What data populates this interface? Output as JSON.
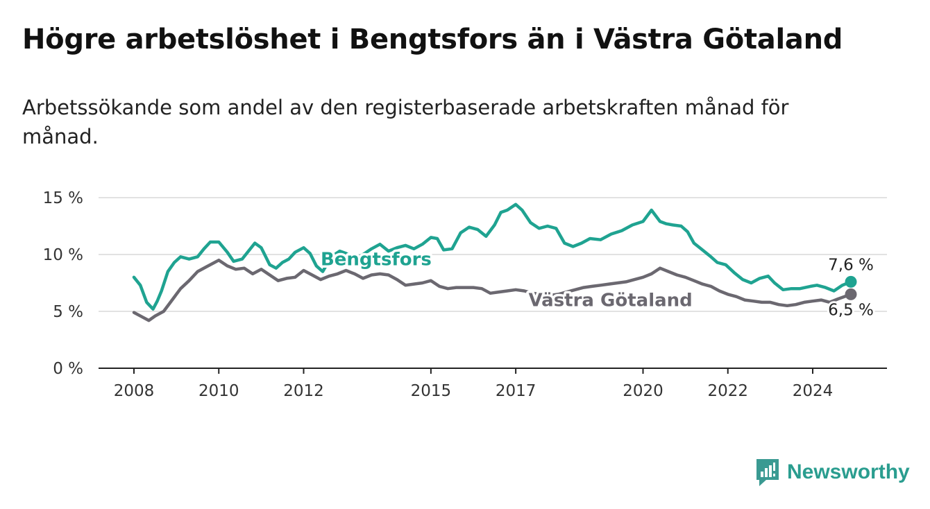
{
  "title": "Högre arbetslöshet i Bengtsfors än i Västra Götaland",
  "subtitle": "Arbetssökande som andel av den registerbaserade arbetskraften månad för månad.",
  "brand": {
    "name": "Newsworthy",
    "icon": "newsworthy-logo-icon",
    "color": "#3a9a92"
  },
  "chart_data": {
    "type": "line",
    "xlabel": "",
    "ylabel": "",
    "ylim": [
      0,
      15
    ],
    "xlim": [
      2007.5,
      2025.7
    ],
    "y_ticks": [
      0,
      5,
      10,
      15
    ],
    "y_tick_labels": [
      "0 %",
      "5 %",
      "10 %",
      "15 %"
    ],
    "x_ticks": [
      2008,
      2010,
      2012,
      2015,
      2017,
      2020,
      2022,
      2024
    ],
    "x_tick_labels": [
      "2008",
      "2010",
      "2012",
      "2015",
      "2017",
      "2020",
      "2022",
      "2024"
    ],
    "grid": true,
    "series": [
      {
        "name": "Bengtsfors",
        "color": "#1fa391",
        "end_label": "7,6 %",
        "x": [
          2008.0,
          2008.15,
          2008.3,
          2008.45,
          2008.55,
          2008.65,
          2008.8,
          2008.95,
          2009.1,
          2009.3,
          2009.5,
          2009.65,
          2009.8,
          2010.0,
          2010.2,
          2010.35,
          2010.55,
          2010.7,
          2010.85,
          2011.0,
          2011.2,
          2011.35,
          2011.5,
          2011.65,
          2011.8,
          2012.0,
          2012.15,
          2012.3,
          2012.45,
          2012.65,
          2012.85,
          2013.0,
          2013.2,
          2013.4,
          2013.6,
          2013.8,
          2014.0,
          2014.2,
          2014.4,
          2014.6,
          2014.8,
          2015.0,
          2015.15,
          2015.3,
          2015.5,
          2015.7,
          2015.9,
          2016.1,
          2016.3,
          2016.5,
          2016.65,
          2016.8,
          2017.0,
          2017.15,
          2017.35,
          2017.55,
          2017.75,
          2017.95,
          2018.15,
          2018.35,
          2018.55,
          2018.75,
          2019.0,
          2019.25,
          2019.5,
          2019.75,
          2020.0,
          2020.2,
          2020.4,
          2020.55,
          2020.7,
          2020.9,
          2021.05,
          2021.2,
          2021.4,
          2021.6,
          2021.75,
          2021.95,
          2022.15,
          2022.35,
          2022.55,
          2022.75,
          2022.95,
          2023.1,
          2023.3,
          2023.5,
          2023.7,
          2023.95,
          2024.1,
          2024.3,
          2024.5,
          2024.7,
          2024.9
        ],
        "y": [
          8.0,
          7.3,
          5.8,
          5.2,
          5.9,
          6.8,
          8.5,
          9.3,
          9.8,
          9.6,
          9.8,
          10.5,
          11.1,
          11.1,
          10.2,
          9.4,
          9.6,
          10.3,
          11.0,
          10.6,
          9.1,
          8.8,
          9.3,
          9.6,
          10.2,
          10.6,
          10.1,
          9.0,
          8.5,
          9.8,
          10.3,
          10.1,
          9.6,
          10.0,
          10.5,
          10.9,
          10.3,
          10.6,
          10.8,
          10.5,
          10.9,
          11.5,
          11.4,
          10.4,
          10.5,
          11.9,
          12.4,
          12.2,
          11.6,
          12.6,
          13.7,
          13.9,
          14.4,
          13.9,
          12.8,
          12.3,
          12.5,
          12.3,
          11.0,
          10.7,
          11.0,
          11.4,
          11.3,
          11.8,
          12.1,
          12.6,
          12.9,
          13.9,
          12.9,
          12.7,
          12.6,
          12.5,
          12.0,
          11.0,
          10.4,
          9.8,
          9.3,
          9.1,
          8.4,
          7.8,
          7.5,
          7.9,
          8.1,
          7.5,
          6.9,
          7.0,
          7.0,
          7.2,
          7.3,
          7.1,
          6.8,
          7.3,
          7.6
        ]
      },
      {
        "name": "Västra Götaland",
        "color": "#6b6870",
        "end_label": "6,5 %",
        "x": [
          2008.0,
          2008.2,
          2008.35,
          2008.5,
          2008.7,
          2008.9,
          2009.1,
          2009.3,
          2009.5,
          2009.7,
          2009.9,
          2010.0,
          2010.2,
          2010.4,
          2010.6,
          2010.8,
          2011.0,
          2011.2,
          2011.4,
          2011.6,
          2011.8,
          2012.0,
          2012.2,
          2012.4,
          2012.6,
          2012.8,
          2013.0,
          2013.2,
          2013.4,
          2013.6,
          2013.8,
          2014.0,
          2014.2,
          2014.4,
          2014.6,
          2014.8,
          2015.0,
          2015.2,
          2015.4,
          2015.6,
          2015.8,
          2016.0,
          2016.2,
          2016.4,
          2016.6,
          2016.8,
          2017.0,
          2017.2,
          2017.4,
          2017.6,
          2017.8,
          2018.0,
          2018.2,
          2018.4,
          2018.6,
          2018.8,
          2019.0,
          2019.2,
          2019.4,
          2019.6,
          2019.8,
          2020.0,
          2020.2,
          2020.4,
          2020.6,
          2020.8,
          2021.0,
          2021.2,
          2021.4,
          2021.6,
          2021.8,
          2022.0,
          2022.2,
          2022.4,
          2022.6,
          2022.8,
          2023.0,
          2023.2,
          2023.4,
          2023.6,
          2023.8,
          2024.0,
          2024.2,
          2024.4,
          2024.6,
          2024.9
        ],
        "y": [
          4.9,
          4.5,
          4.2,
          4.6,
          5.0,
          6.0,
          7.0,
          7.7,
          8.5,
          8.9,
          9.3,
          9.5,
          9.0,
          8.7,
          8.8,
          8.3,
          8.7,
          8.2,
          7.7,
          7.9,
          8.0,
          8.6,
          8.2,
          7.8,
          8.1,
          8.3,
          8.6,
          8.3,
          7.9,
          8.2,
          8.3,
          8.2,
          7.8,
          7.3,
          7.4,
          7.5,
          7.7,
          7.2,
          7.0,
          7.1,
          7.1,
          7.1,
          7.0,
          6.6,
          6.7,
          6.8,
          6.9,
          6.8,
          6.6,
          6.5,
          6.4,
          6.5,
          6.7,
          6.9,
          7.1,
          7.2,
          7.3,
          7.4,
          7.5,
          7.6,
          7.8,
          8.0,
          8.3,
          8.8,
          8.5,
          8.2,
          8.0,
          7.7,
          7.4,
          7.2,
          6.8,
          6.5,
          6.3,
          6.0,
          5.9,
          5.8,
          5.8,
          5.6,
          5.5,
          5.6,
          5.8,
          5.9,
          6.0,
          5.8,
          6.1,
          6.5
        ]
      }
    ],
    "series_label_positions": [
      {
        "series": "Bengtsfors",
        "at_x": 2012.4,
        "at_y": 9.6,
        "anchor": "start"
      },
      {
        "series": "Västra Götaland",
        "at_x": 2017.3,
        "at_y": 6.0,
        "anchor": "start"
      }
    ]
  }
}
